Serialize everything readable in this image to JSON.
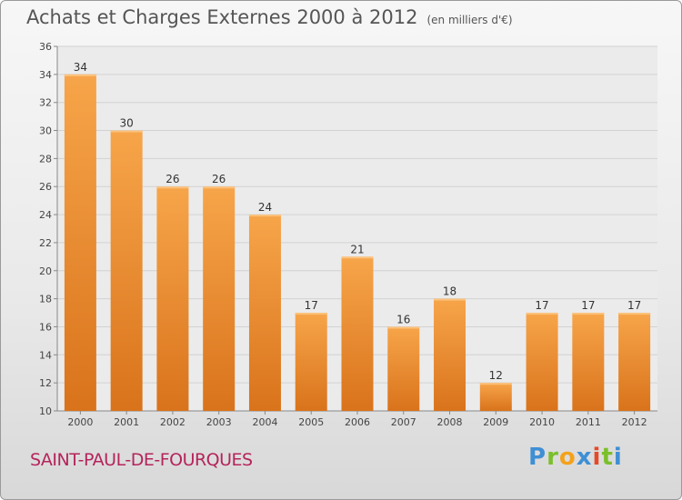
{
  "header": {
    "title": "Achats et Charges Externes 2000 à 2012",
    "unit": "(en milliers d'€)"
  },
  "footer": {
    "commune": "SAINT-PAUL-DE-FOURQUES",
    "logo_letters": [
      "P",
      "r",
      "o",
      "x",
      "i",
      "t",
      "i"
    ]
  },
  "colors": {
    "bar_top": "#f7a54a",
    "bar_bottom": "#d9731b",
    "commune": "#b5245b"
  },
  "chart_data": {
    "type": "bar",
    "title": "Achats et Charges Externes 2000 à 2012",
    "subtitle": "(en milliers d'€)",
    "xlabel": "",
    "ylabel": "",
    "categories": [
      "2000",
      "2001",
      "2002",
      "2003",
      "2004",
      "2005",
      "2006",
      "2007",
      "2008",
      "2009",
      "2010",
      "2011",
      "2012"
    ],
    "values": [
      34,
      30,
      26,
      26,
      24,
      17,
      21,
      16,
      18,
      12,
      17,
      17,
      17
    ],
    "ylim": [
      10,
      36
    ],
    "yticks": [
      10,
      12,
      14,
      16,
      18,
      20,
      22,
      24,
      26,
      28,
      30,
      32,
      34,
      36
    ],
    "grid": true,
    "legend": "none"
  }
}
